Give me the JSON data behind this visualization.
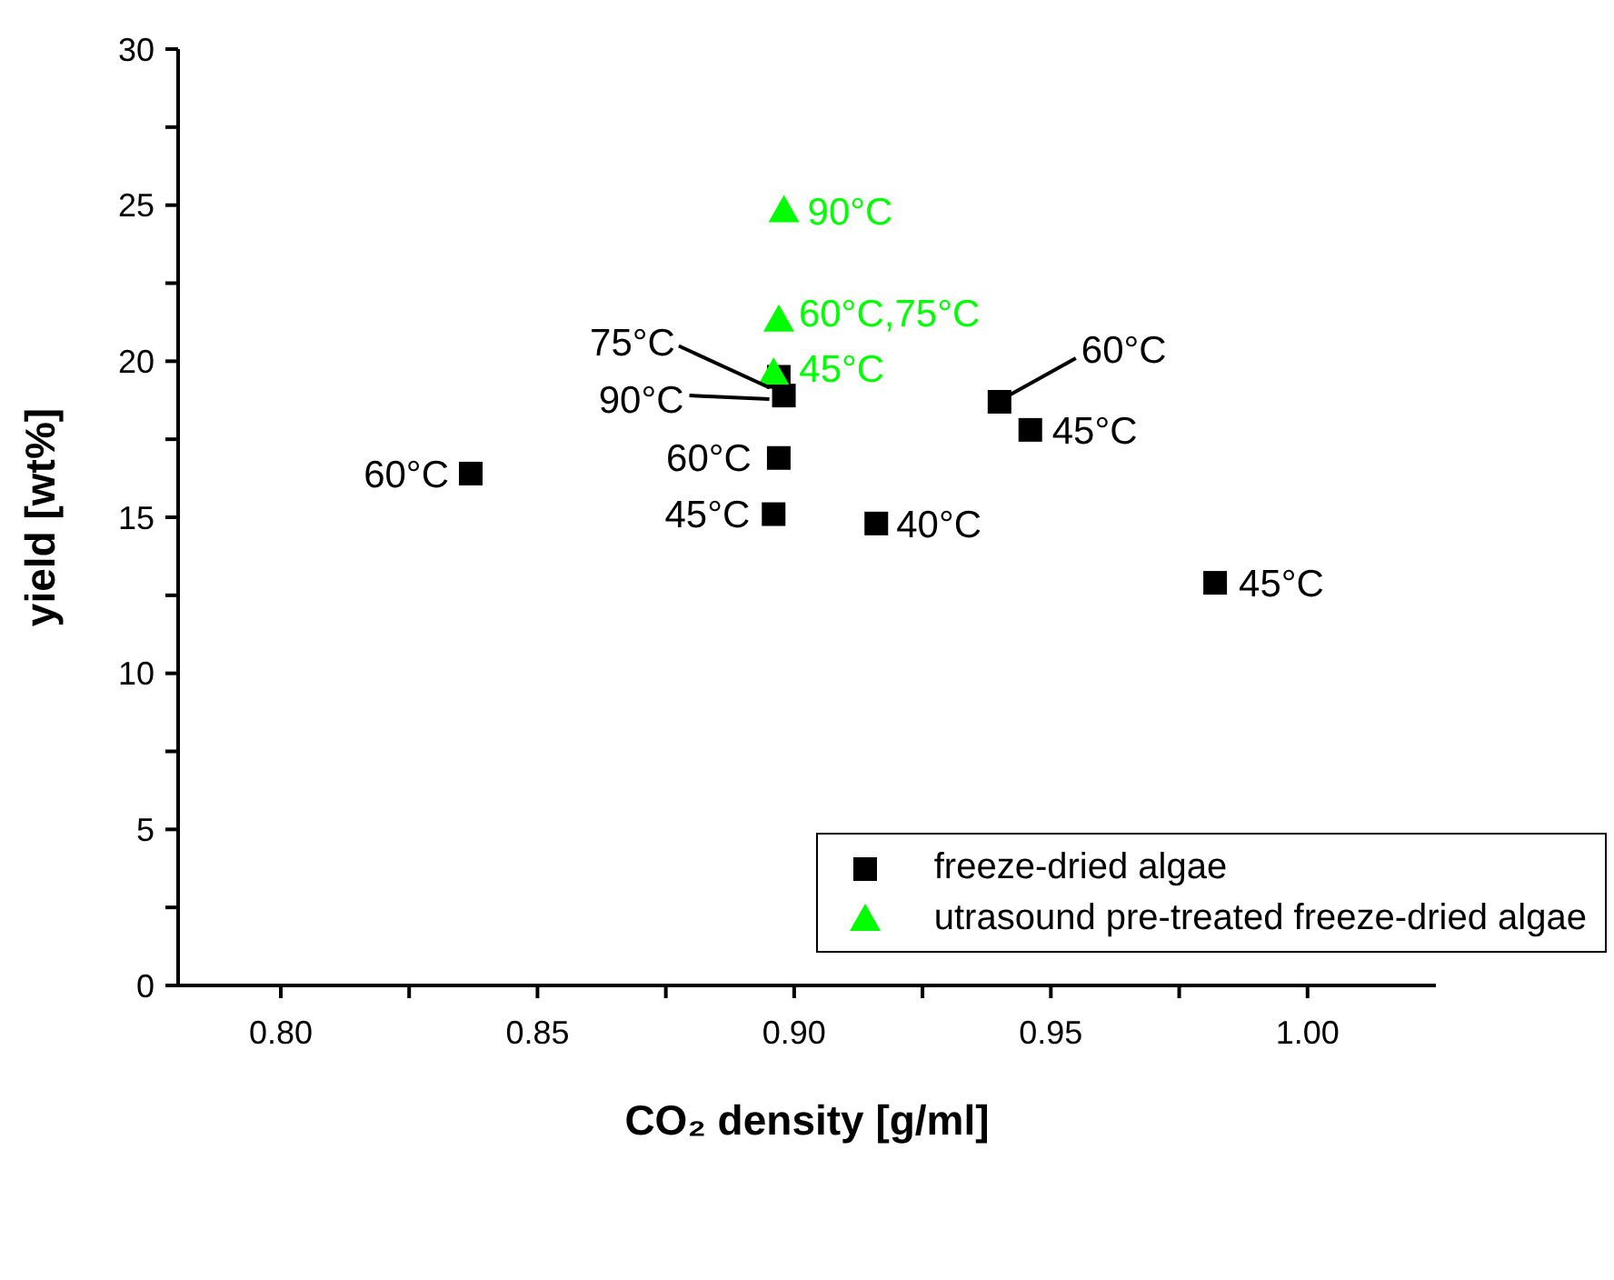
{
  "chart_data": {
    "type": "scatter",
    "xlabel": "CO₂ density [g/ml]",
    "ylabel": "yield [wt%]",
    "xlim": [
      0.78,
      1.025
    ],
    "xticks": [
      {
        "value": 0.8,
        "label": "0.80"
      },
      {
        "value": 0.825,
        "label": null
      },
      {
        "value": 0.85,
        "label": "0.85"
      },
      {
        "value": 0.875,
        "label": null
      },
      {
        "value": 0.9,
        "label": "0.90"
      },
      {
        "value": 0.925,
        "label": null
      },
      {
        "value": 0.95,
        "label": "0.95"
      },
      {
        "value": 0.975,
        "label": null
      },
      {
        "value": 1.0,
        "label": "1.00"
      }
    ],
    "ylim": [
      0,
      30
    ],
    "yticks": [
      0,
      {
        "value": 2.5,
        "label": null
      },
      5,
      {
        "value": 7.5,
        "label": null
      },
      10,
      {
        "value": 12.5,
        "label": null
      },
      15,
      {
        "value": 17.5,
        "label": null
      },
      20,
      {
        "value": 22.5,
        "label": null
      },
      25,
      {
        "value": 27.5,
        "label": null
      },
      30
    ],
    "grid": false,
    "legend": "bottom right",
    "series": [
      {
        "name": "freeze-dried algae",
        "color": "#000000",
        "marker": "square",
        "x": [
          0.837,
          0.897,
          0.898,
          0.897,
          0.896,
          0.916,
          0.94,
          0.946,
          0.982
        ],
        "values": [
          16.4,
          19.5,
          18.9,
          16.9,
          15.1,
          14.8,
          18.7,
          17.8,
          12.9
        ]
      },
      {
        "name": "utrasound pre-treated freeze-dried algae",
        "color": "#00ff00",
        "marker": "triangle",
        "x": [
          0.898,
          0.897,
          0.896
        ],
        "values": [
          24.8,
          21.3,
          19.6
        ]
      }
    ],
    "annotations": [
      {
        "text": "60°C",
        "x": 0.837,
        "y": 16.4
      },
      {
        "text": "75°C",
        "x": 0.897,
        "y": 19.5
      },
      {
        "text": "90°C",
        "x": 0.898,
        "y": 18.9
      },
      {
        "text": "60°C",
        "x": 0.897,
        "y": 16.9
      },
      {
        "text": "45°C",
        "x": 0.896,
        "y": 15.1
      },
      {
        "text": "40°C",
        "x": 0.916,
        "y": 14.8
      },
      {
        "text": "60°C",
        "x": 0.94,
        "y": 18.7
      },
      {
        "text": "45°C",
        "x": 0.946,
        "y": 17.8
      },
      {
        "text": "45°C",
        "x": 0.982,
        "y": 12.9
      },
      {
        "text": "90°C",
        "x": 0.898,
        "y": 24.8
      },
      {
        "text": "60°C,75°C",
        "x": 0.897,
        "y": 21.3
      },
      {
        "text": "45°C",
        "x": 0.896,
        "y": 19.6
      }
    ]
  }
}
